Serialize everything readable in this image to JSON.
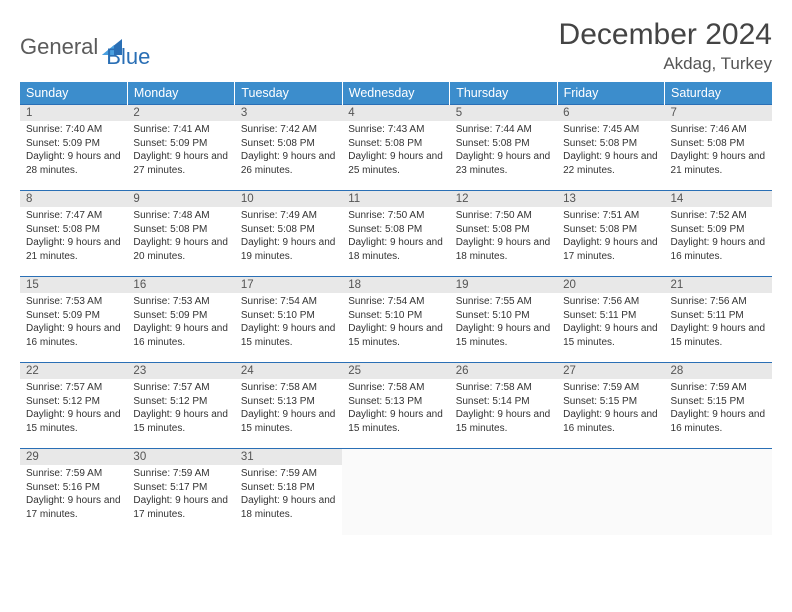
{
  "brand": {
    "general": "General",
    "blue": "Blue"
  },
  "title": "December 2024",
  "location": "Akdag, Turkey",
  "colors": {
    "header_bg": "#3c8dcc",
    "header_text": "#ffffff",
    "daynum_bg": "#e8e8e8",
    "border": "#2a6fb5",
    "text": "#333333",
    "background": "#ffffff"
  },
  "weekdays": [
    "Sunday",
    "Monday",
    "Tuesday",
    "Wednesday",
    "Thursday",
    "Friday",
    "Saturday"
  ],
  "cells": [
    {
      "n": "1",
      "sr": "7:40 AM",
      "ss": "5:09 PM",
      "dl": "9 hours and 28 minutes."
    },
    {
      "n": "2",
      "sr": "7:41 AM",
      "ss": "5:09 PM",
      "dl": "9 hours and 27 minutes."
    },
    {
      "n": "3",
      "sr": "7:42 AM",
      "ss": "5:08 PM",
      "dl": "9 hours and 26 minutes."
    },
    {
      "n": "4",
      "sr": "7:43 AM",
      "ss": "5:08 PM",
      "dl": "9 hours and 25 minutes."
    },
    {
      "n": "5",
      "sr": "7:44 AM",
      "ss": "5:08 PM",
      "dl": "9 hours and 23 minutes."
    },
    {
      "n": "6",
      "sr": "7:45 AM",
      "ss": "5:08 PM",
      "dl": "9 hours and 22 minutes."
    },
    {
      "n": "7",
      "sr": "7:46 AM",
      "ss": "5:08 PM",
      "dl": "9 hours and 21 minutes."
    },
    {
      "n": "8",
      "sr": "7:47 AM",
      "ss": "5:08 PM",
      "dl": "9 hours and 21 minutes."
    },
    {
      "n": "9",
      "sr": "7:48 AM",
      "ss": "5:08 PM",
      "dl": "9 hours and 20 minutes."
    },
    {
      "n": "10",
      "sr": "7:49 AM",
      "ss": "5:08 PM",
      "dl": "9 hours and 19 minutes."
    },
    {
      "n": "11",
      "sr": "7:50 AM",
      "ss": "5:08 PM",
      "dl": "9 hours and 18 minutes."
    },
    {
      "n": "12",
      "sr": "7:50 AM",
      "ss": "5:08 PM",
      "dl": "9 hours and 18 minutes."
    },
    {
      "n": "13",
      "sr": "7:51 AM",
      "ss": "5:08 PM",
      "dl": "9 hours and 17 minutes."
    },
    {
      "n": "14",
      "sr": "7:52 AM",
      "ss": "5:09 PM",
      "dl": "9 hours and 16 minutes."
    },
    {
      "n": "15",
      "sr": "7:53 AM",
      "ss": "5:09 PM",
      "dl": "9 hours and 16 minutes."
    },
    {
      "n": "16",
      "sr": "7:53 AM",
      "ss": "5:09 PM",
      "dl": "9 hours and 16 minutes."
    },
    {
      "n": "17",
      "sr": "7:54 AM",
      "ss": "5:10 PM",
      "dl": "9 hours and 15 minutes."
    },
    {
      "n": "18",
      "sr": "7:54 AM",
      "ss": "5:10 PM",
      "dl": "9 hours and 15 minutes."
    },
    {
      "n": "19",
      "sr": "7:55 AM",
      "ss": "5:10 PM",
      "dl": "9 hours and 15 minutes."
    },
    {
      "n": "20",
      "sr": "7:56 AM",
      "ss": "5:11 PM",
      "dl": "9 hours and 15 minutes."
    },
    {
      "n": "21",
      "sr": "7:56 AM",
      "ss": "5:11 PM",
      "dl": "9 hours and 15 minutes."
    },
    {
      "n": "22",
      "sr": "7:57 AM",
      "ss": "5:12 PM",
      "dl": "9 hours and 15 minutes."
    },
    {
      "n": "23",
      "sr": "7:57 AM",
      "ss": "5:12 PM",
      "dl": "9 hours and 15 minutes."
    },
    {
      "n": "24",
      "sr": "7:58 AM",
      "ss": "5:13 PM",
      "dl": "9 hours and 15 minutes."
    },
    {
      "n": "25",
      "sr": "7:58 AM",
      "ss": "5:13 PM",
      "dl": "9 hours and 15 minutes."
    },
    {
      "n": "26",
      "sr": "7:58 AM",
      "ss": "5:14 PM",
      "dl": "9 hours and 15 minutes."
    },
    {
      "n": "27",
      "sr": "7:59 AM",
      "ss": "5:15 PM",
      "dl": "9 hours and 16 minutes."
    },
    {
      "n": "28",
      "sr": "7:59 AM",
      "ss": "5:15 PM",
      "dl": "9 hours and 16 minutes."
    },
    {
      "n": "29",
      "sr": "7:59 AM",
      "ss": "5:16 PM",
      "dl": "9 hours and 17 minutes."
    },
    {
      "n": "30",
      "sr": "7:59 AM",
      "ss": "5:17 PM",
      "dl": "9 hours and 17 minutes."
    },
    {
      "n": "31",
      "sr": "7:59 AM",
      "ss": "5:18 PM",
      "dl": "9 hours and 18 minutes."
    },
    {
      "empty": true
    },
    {
      "empty": true
    },
    {
      "empty": true
    },
    {
      "empty": true
    }
  ],
  "labels": {
    "sunrise": "Sunrise: ",
    "sunset": "Sunset: ",
    "daylight": "Daylight: "
  }
}
